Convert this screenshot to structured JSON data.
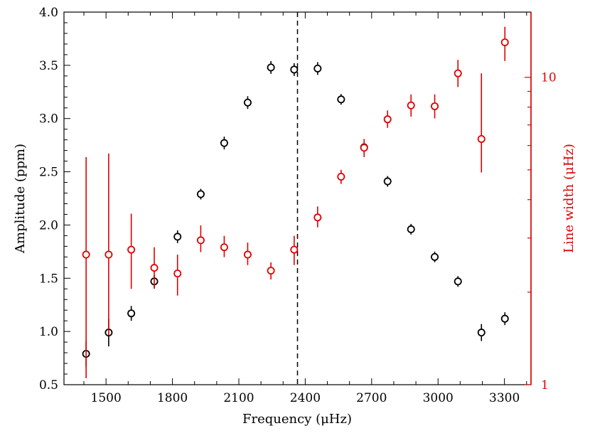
{
  "chart_data": {
    "type": "scatter",
    "xlabel": "Frequency (μHz)",
    "ylabel_left": "Amplitude (ppm)",
    "ylabel_right": "Line width (μHz)",
    "xlim": [
      1310,
      3420
    ],
    "ylim_left": [
      0.5,
      4.0
    ],
    "ylim_right": [
      1,
      16.3
    ],
    "y_right_scale": "log",
    "x_ticks": [
      1500,
      1800,
      2100,
      2400,
      2700,
      3000,
      3300
    ],
    "x_ticks_minor_step": 100,
    "y_left_ticks": [
      "0.5",
      "1.0",
      "1.5",
      "2.0",
      "2.5",
      "3.0",
      "3.5",
      "4.0"
    ],
    "y_right_ticks": [
      "1",
      "10"
    ],
    "vertical_line_x": 2365,
    "colors": {
      "amplitude": "#000000",
      "linewidth": "#e00000",
      "vline": "#000000"
    },
    "series": [
      {
        "axis": "left",
        "color": "#000000",
        "points": [
          {
            "x": 1410,
            "y": 0.79,
            "err": 0.12
          },
          {
            "x": 1512,
            "y": 0.99,
            "err": 0.13
          },
          {
            "x": 1614,
            "y": 1.17,
            "err": 0.07
          },
          {
            "x": 1718,
            "y": 1.47,
            "err": 0.06
          },
          {
            "x": 1823,
            "y": 1.89,
            "err": 0.06
          },
          {
            "x": 1928,
            "y": 2.29,
            "err": 0.05
          },
          {
            "x": 2034,
            "y": 2.77,
            "err": 0.06
          },
          {
            "x": 2140,
            "y": 3.15,
            "err": 0.06
          },
          {
            "x": 2245,
            "y": 3.48,
            "err": 0.06
          },
          {
            "x": 2350,
            "y": 3.46,
            "err": 0.06
          },
          {
            "x": 2456,
            "y": 3.47,
            "err": 0.06
          },
          {
            "x": 2562,
            "y": 3.18,
            "err": 0.05
          },
          {
            "x": 2666,
            "y": 2.73,
            "err": 0.05
          },
          {
            "x": 2772,
            "y": 2.41,
            "err": 0.05
          },
          {
            "x": 2878,
            "y": 1.96,
            "err": 0.05
          },
          {
            "x": 2985,
            "y": 1.7,
            "err": 0.05
          },
          {
            "x": 3090,
            "y": 1.47,
            "err": 0.05
          },
          {
            "x": 3196,
            "y": 0.99,
            "err": 0.08
          },
          {
            "x": 3302,
            "y": 1.12,
            "err": 0.06
          }
        ]
      },
      {
        "axis": "right",
        "color": "#e00000",
        "points": [
          {
            "x": 1410,
            "y": 2.65,
            "lo": 1.05,
            "hi": 5.5
          },
          {
            "x": 1512,
            "y": 2.65,
            "lo": 1.45,
            "hi": 5.65
          },
          {
            "x": 1614,
            "y": 2.75,
            "lo": 2.05,
            "hi": 3.6
          },
          {
            "x": 1718,
            "y": 2.4,
            "lo": 2.05,
            "hi": 2.8
          },
          {
            "x": 1823,
            "y": 2.3,
            "lo": 1.95,
            "hi": 2.65
          },
          {
            "x": 1928,
            "y": 2.95,
            "lo": 2.7,
            "hi": 3.3
          },
          {
            "x": 2034,
            "y": 2.8,
            "lo": 2.6,
            "hi": 3.05
          },
          {
            "x": 2140,
            "y": 2.65,
            "lo": 2.45,
            "hi": 2.9
          },
          {
            "x": 2245,
            "y": 2.35,
            "lo": 2.2,
            "hi": 2.5
          },
          {
            "x": 2350,
            "y": 2.75,
            "lo": 2.45,
            "hi": 3.05
          },
          {
            "x": 2456,
            "y": 3.5,
            "lo": 3.25,
            "hi": 3.8
          },
          {
            "x": 2562,
            "y": 4.75,
            "lo": 4.5,
            "hi": 5.0
          },
          {
            "x": 2666,
            "y": 5.9,
            "lo": 5.5,
            "hi": 6.3
          },
          {
            "x": 2772,
            "y": 7.3,
            "lo": 6.85,
            "hi": 7.8
          },
          {
            "x": 2878,
            "y": 8.1,
            "lo": 7.45,
            "hi": 8.8
          },
          {
            "x": 2985,
            "y": 8.05,
            "lo": 7.35,
            "hi": 8.8
          },
          {
            "x": 3090,
            "y": 10.3,
            "lo": 9.3,
            "hi": 11.4
          },
          {
            "x": 3196,
            "y": 6.3,
            "lo": 4.9,
            "hi": 10.3
          },
          {
            "x": 3302,
            "y": 13.0,
            "lo": 11.3,
            "hi": 14.6
          }
        ]
      }
    ]
  }
}
